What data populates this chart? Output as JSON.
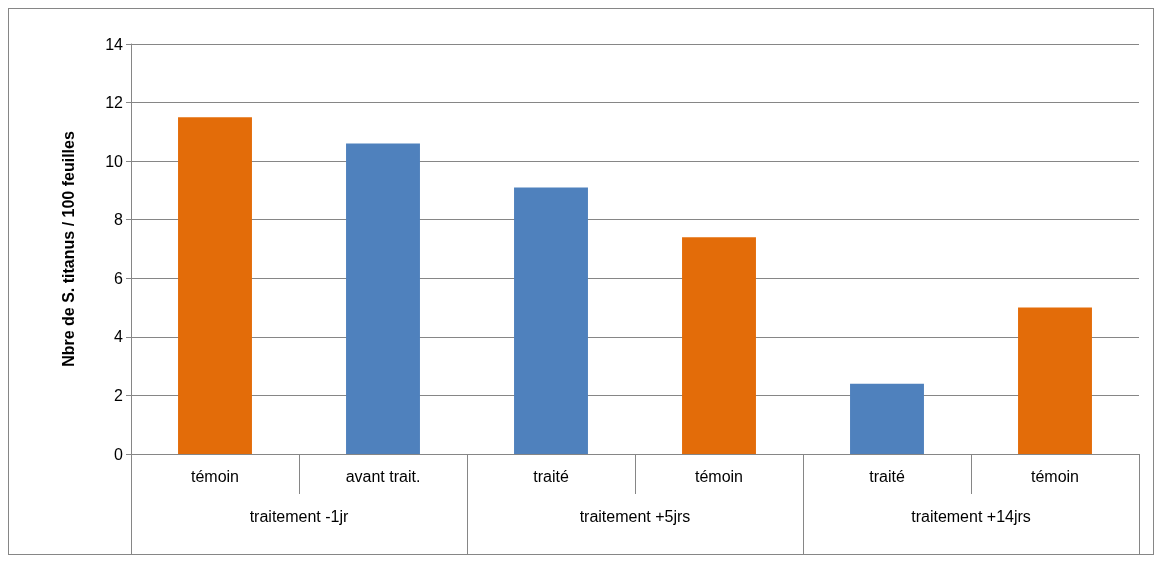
{
  "chart_data": {
    "type": "bar",
    "ylabel": "Nbre de S. titanus / 100 feuilles",
    "categories": [
      "témoin",
      "avant trait.",
      "traité",
      "témoin",
      "traité",
      "témoin"
    ],
    "values": [
      11.5,
      10.6,
      9.1,
      7.4,
      2.4,
      5.0
    ],
    "colors": [
      "#e36c09",
      "#4f81bd",
      "#4f81bd",
      "#e36c09",
      "#4f81bd",
      "#e36c09"
    ],
    "annotations": [
      "traitement -1jr",
      "traitement +5jrs",
      "traitement +14jrs"
    ],
    "ylim": [
      0,
      14
    ],
    "yticks": [
      0,
      2,
      4,
      6,
      8,
      10,
      12,
      14
    ],
    "grid": "y"
  }
}
